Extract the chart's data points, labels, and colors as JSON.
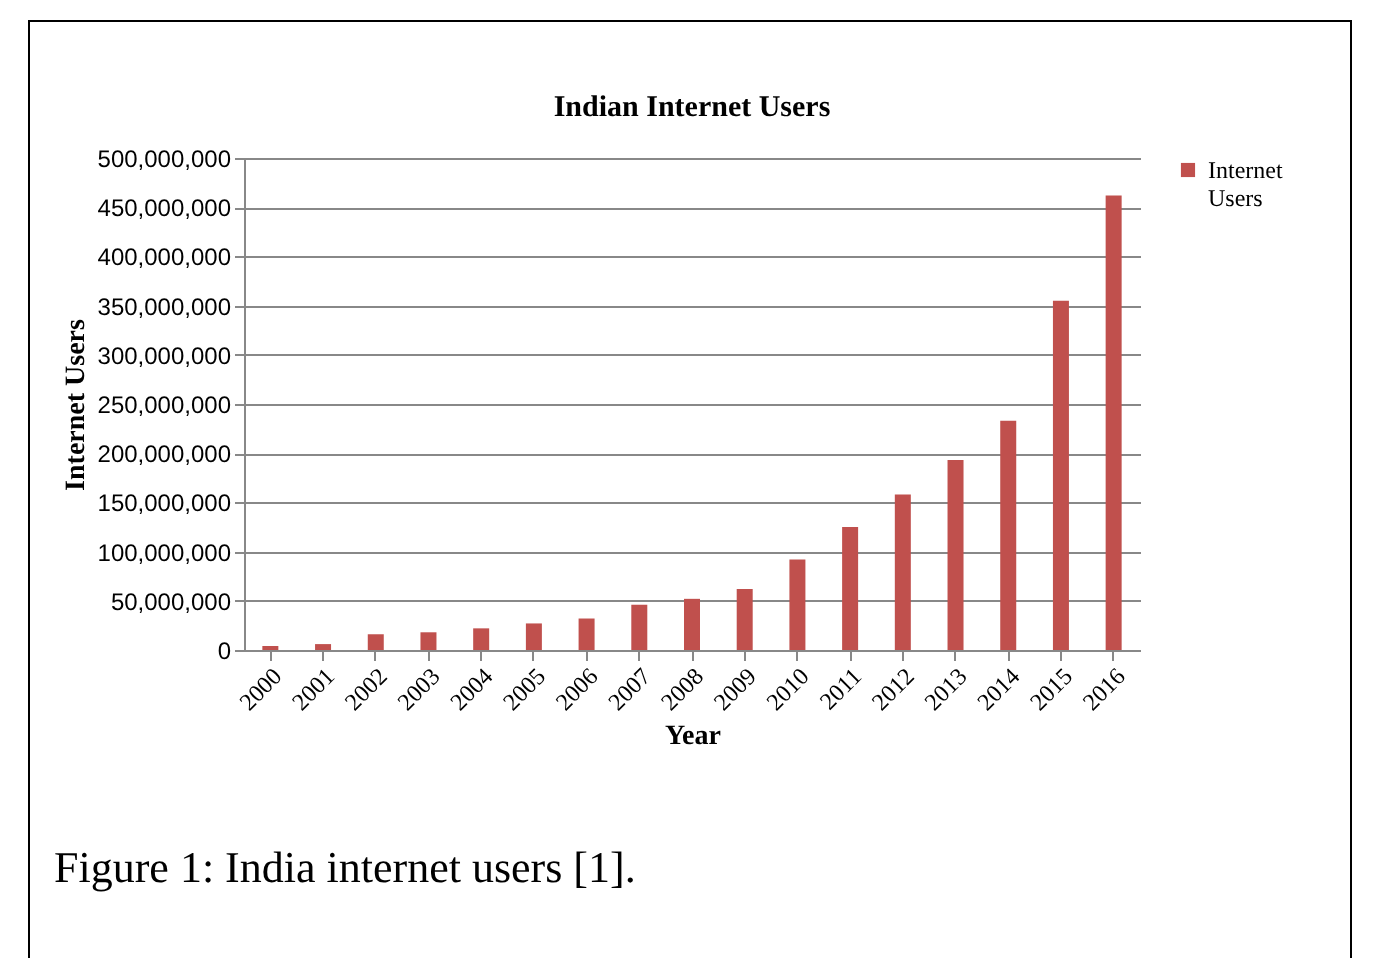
{
  "chart_data": {
    "type": "bar",
    "title": "Indian Internet Users",
    "xlabel": "Year",
    "ylabel": "Internet Users",
    "categories": [
      "2000",
      "2001",
      "2002",
      "2003",
      "2004",
      "2005",
      "2006",
      "2007",
      "2008",
      "2009",
      "2010",
      "2011",
      "2012",
      "2013",
      "2014",
      "2015",
      "2016"
    ],
    "series": [
      {
        "name": "Internet Users",
        "color": "#c0504d",
        "values": [
          4000000,
          6000000,
          16000000,
          18000000,
          22000000,
          27000000,
          32000000,
          46000000,
          52000000,
          62000000,
          92000000,
          125000000,
          158000000,
          193000000,
          233000000,
          355000000,
          462000000
        ]
      }
    ],
    "ylim": [
      0,
      500000000
    ],
    "yticks": [
      0,
      {
        "value": 50000000,
        "label": "50,000,000"
      },
      {
        "value": 100000000,
        "label": "100,000,000"
      },
      {
        "value": 150000000,
        "label": "150,000,000"
      },
      {
        "value": 200000000,
        "label": "200,000,000"
      },
      {
        "value": 250000000,
        "label": "250,000,000"
      },
      {
        "value": 300000000,
        "label": "300,000,000"
      },
      {
        "value": 350000000,
        "label": "350,000,000"
      },
      {
        "value": 400000000,
        "label": "400,000,000"
      },
      {
        "value": 450000000,
        "label": "450,000,000"
      },
      {
        "value": 500000000,
        "label": "500,000,000"
      }
    ],
    "grid": "y",
    "legend": "right",
    "annotations": [
      "Figure 1: India internet users [1]."
    ]
  }
}
